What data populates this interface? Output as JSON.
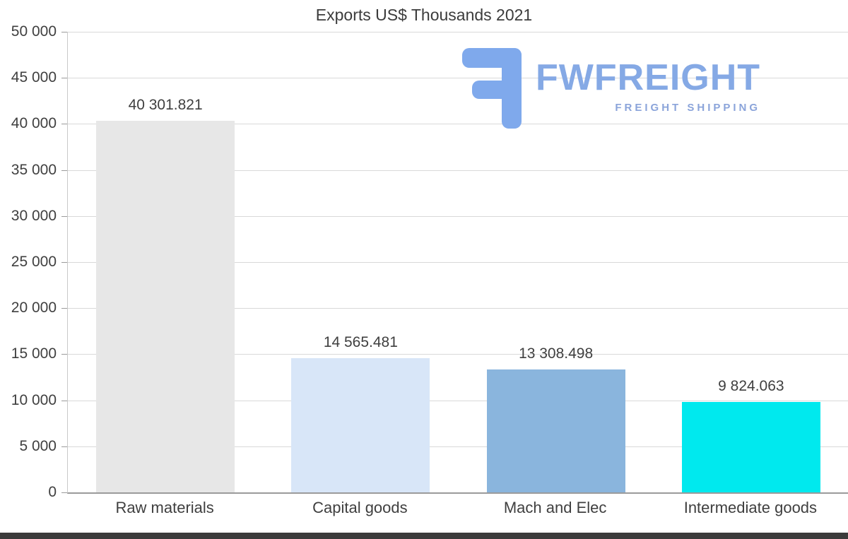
{
  "chart_data": {
    "type": "bar",
    "title": "Exports US$ Thousands 2021",
    "categories": [
      "Raw materials",
      "Capital goods",
      "Mach and Elec",
      "Intermediate goods"
    ],
    "values": [
      40301.821,
      14565.481,
      13308.498,
      9824.063
    ],
    "value_labels": [
      "40 301.821",
      "14 565.481",
      "13 308.498",
      "9 824.063"
    ],
    "bar_colors": [
      "#e7e7e7",
      "#d8e6f8",
      "#8ab5dd",
      "#00e9ee"
    ],
    "xlabel": "",
    "ylabel": "",
    "ylim": [
      0,
      50000
    ],
    "ytick_values": [
      0,
      5000,
      10000,
      15000,
      20000,
      25000,
      30000,
      35000,
      40000,
      45000,
      50000
    ],
    "ytick_labels": [
      "0",
      "5 000",
      "10 000",
      "15 000",
      "20 000",
      "25 000",
      "30 000",
      "35 000",
      "40 000",
      "45 000",
      "50 000"
    ],
    "grid": true,
    "legend_position": "none"
  },
  "watermark": {
    "brand": "FWFREIGHT",
    "tagline": "FREIGHT SHIPPING",
    "brand_color": "#85a9e5",
    "tagline_color": "#8ba4da",
    "icon_color": "#7fa9ec",
    "icon": "fwfreight-logo-icon"
  }
}
